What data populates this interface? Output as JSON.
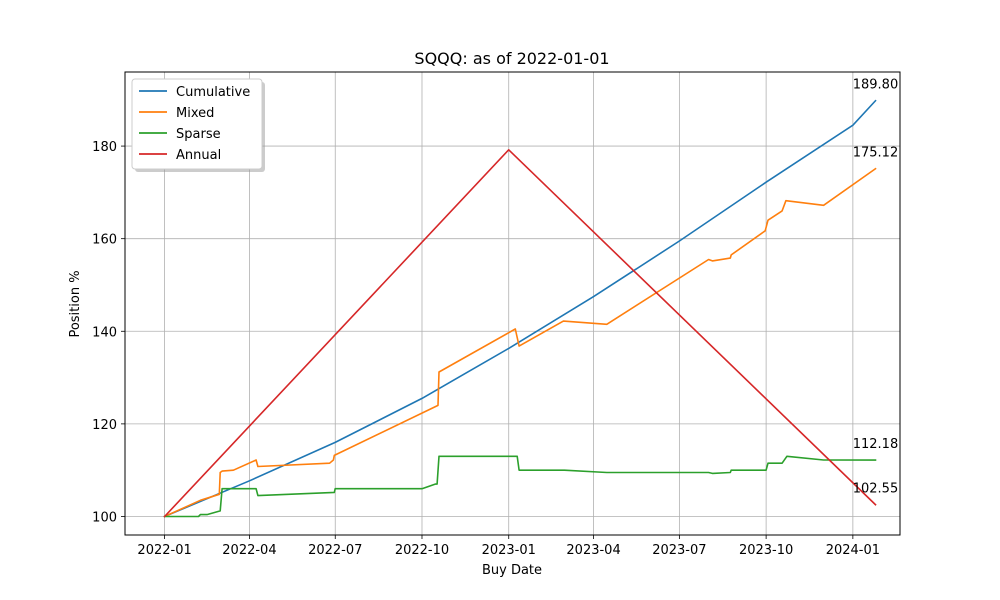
{
  "chart_data": {
    "type": "line",
    "title": "SQQQ: as of 2022-01-01",
    "xlabel": "Buy Date",
    "ylabel": "Position %",
    "xlim": [
      "2021-11-20",
      "2024-02-20"
    ],
    "ylim": [
      96,
      196
    ],
    "x_ticks": [
      "2022-01",
      "2022-04",
      "2022-07",
      "2022-10",
      "2023-01",
      "2023-04",
      "2023-07",
      "2023-10",
      "2024-01"
    ],
    "x_tick_dates": [
      "2022-01-01",
      "2022-04-01",
      "2022-07-01",
      "2022-10-01",
      "2023-01-01",
      "2023-04-01",
      "2023-07-01",
      "2023-10-01",
      "2024-01-01"
    ],
    "y_ticks": [
      100,
      120,
      140,
      160,
      180
    ],
    "grid": true,
    "legend_position": "top-left",
    "series": [
      {
        "name": "Cumulative",
        "color": "#1f77b4",
        "points": [
          [
            "2022-01-01",
            100.0
          ],
          [
            "2022-04-01",
            107.7
          ],
          [
            "2022-07-01",
            116.0
          ],
          [
            "2022-10-01",
            125.5
          ],
          [
            "2023-01-01",
            136.3
          ],
          [
            "2023-04-01",
            147.5
          ],
          [
            "2023-07-01",
            159.5
          ],
          [
            "2023-10-01",
            172.2
          ],
          [
            "2024-01-01",
            184.5
          ],
          [
            "2024-01-25",
            189.8
          ]
        ]
      },
      {
        "name": "Mixed",
        "color": "#ff7f0e",
        "points": [
          [
            "2022-01-01",
            100.0
          ],
          [
            "2022-02-08",
            103.5
          ],
          [
            "2022-02-28",
            104.8
          ],
          [
            "2022-03-01",
            109.5
          ],
          [
            "2022-03-03",
            109.8
          ],
          [
            "2022-03-15",
            110.0
          ],
          [
            "2022-04-08",
            112.2
          ],
          [
            "2022-04-10",
            110.8
          ],
          [
            "2022-06-25",
            111.5
          ],
          [
            "2022-06-29",
            112.2
          ],
          [
            "2022-06-30",
            113.2
          ],
          [
            "2022-10-18",
            124.0
          ],
          [
            "2022-10-19",
            131.2
          ],
          [
            "2023-01-08",
            140.5
          ],
          [
            "2023-01-12",
            136.8
          ],
          [
            "2023-02-28",
            142.2
          ],
          [
            "2023-04-15",
            141.5
          ],
          [
            "2023-08-01",
            155.5
          ],
          [
            "2023-08-05",
            155.2
          ],
          [
            "2023-08-24",
            155.8
          ],
          [
            "2023-08-25",
            156.5
          ],
          [
            "2023-09-30",
            161.7
          ],
          [
            "2023-10-03",
            164.0
          ],
          [
            "2023-10-18",
            166.0
          ],
          [
            "2023-10-22",
            168.2
          ],
          [
            "2023-12-01",
            167.2
          ],
          [
            "2024-01-25",
            175.12
          ]
        ]
      },
      {
        "name": "Sparse",
        "color": "#2ca02c",
        "points": [
          [
            "2022-01-01",
            100.0
          ],
          [
            "2022-02-06",
            100.0
          ],
          [
            "2022-02-08",
            100.4
          ],
          [
            "2022-02-15",
            100.4
          ],
          [
            "2022-03-01",
            101.2
          ],
          [
            "2022-03-03",
            106.0
          ],
          [
            "2022-04-08",
            106.0
          ],
          [
            "2022-04-10",
            104.5
          ],
          [
            "2022-06-30",
            105.2
          ],
          [
            "2022-07-01",
            106.0
          ],
          [
            "2022-10-01",
            106.0
          ],
          [
            "2022-10-15",
            107.0
          ],
          [
            "2022-10-17",
            107.0
          ],
          [
            "2022-10-19",
            113.0
          ],
          [
            "2023-01-10",
            113.0
          ],
          [
            "2023-01-12",
            110.0
          ],
          [
            "2023-03-01",
            110.0
          ],
          [
            "2023-04-15",
            109.5
          ],
          [
            "2023-08-01",
            109.5
          ],
          [
            "2023-08-05",
            109.3
          ],
          [
            "2023-08-24",
            109.5
          ],
          [
            "2023-08-25",
            110.0
          ],
          [
            "2023-10-01",
            110.0
          ],
          [
            "2023-10-03",
            111.5
          ],
          [
            "2023-10-18",
            111.5
          ],
          [
            "2023-10-23",
            113.0
          ],
          [
            "2023-12-01",
            112.2
          ],
          [
            "2024-01-25",
            112.18
          ]
        ]
      },
      {
        "name": "Annual",
        "color": "#d62728",
        "points": [
          [
            "2022-01-01",
            100.0
          ],
          [
            "2023-01-01",
            179.2
          ],
          [
            "2024-01-25",
            102.55
          ]
        ]
      }
    ],
    "end_labels": [
      {
        "series": "Cumulative",
        "text": "189.80"
      },
      {
        "series": "Mixed",
        "text": "175.12"
      },
      {
        "series": "Sparse",
        "text": "112.18"
      },
      {
        "series": "Annual",
        "text": "102.55"
      }
    ]
  }
}
